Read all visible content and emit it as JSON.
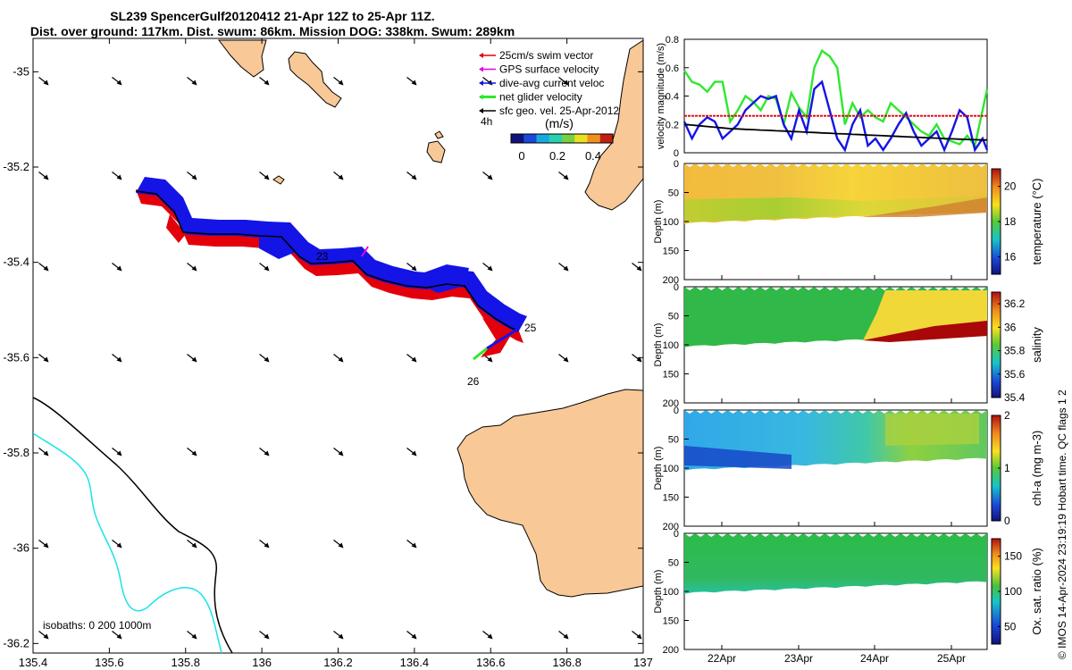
{
  "title": {
    "line1": "SL239 SpencerGulf20120412 21-Apr 12Z to 25-Apr 11Z.",
    "line2": "Dist. over ground: 117km. Dist. swum: 86km. Mission DOG: 338km. Swum: 289km"
  },
  "colors": {
    "land": "#f8c897",
    "isobath_shallow": "#000000",
    "isobath_deep": "#19e3ea",
    "swim": "#e3000b",
    "gps": "#e800e8",
    "current": "#1414e6",
    "net": "#2ee82e",
    "geo": "#000000"
  },
  "map": {
    "x_ticks": [
      "135.4",
      "135.6",
      "135.8",
      "136",
      "136.2",
      "136.4",
      "136.6",
      "136.8",
      "137"
    ],
    "y_ticks": [
      "-35",
      "-35.2",
      "-35.4",
      "-35.6",
      "-35.8",
      "-36",
      "-36.2"
    ],
    "xlim": [
      135.4,
      137.0
    ],
    "ylim": [
      -36.22,
      -34.93
    ],
    "day_labels": [
      "23",
      "25",
      "26"
    ],
    "isobath_label": "isobaths: 0   200  1000m",
    "legend": [
      {
        "label": "25cm/s swim vector",
        "key": "swim"
      },
      {
        "label": "GPS surface velocity",
        "key": "gps"
      },
      {
        "label": "dive-avg current veloc",
        "key": "current"
      },
      {
        "label": "net glider velocity",
        "key": "net"
      },
      {
        "label": "sfc geo. vel. 25-Apr-2012",
        "key": "geo"
      }
    ],
    "legend_interval": "4h",
    "colorbar": {
      "title": "(m/s)",
      "ticks": [
        "0",
        "0.2",
        "0.4"
      ]
    }
  },
  "chart_data": [
    {
      "type": "line",
      "title": "velocity magnitude",
      "ylabel": "velocity magnitude (m/s)",
      "ylim": [
        0,
        0.8
      ],
      "y_ticks": [
        "0",
        "0.2",
        "0.4",
        "0.6",
        "0.8"
      ],
      "x_days": [
        0.0,
        0.1,
        0.2,
        0.3,
        0.4,
        0.5,
        0.6,
        0.7,
        0.8,
        0.9,
        1.0,
        1.1,
        1.2,
        1.3,
        1.4,
        1.5,
        1.6,
        1.7,
        1.8,
        1.9,
        2.0,
        2.1,
        2.2,
        2.3,
        2.4,
        2.5,
        2.6,
        2.7,
        2.8,
        2.9,
        3.0,
        3.1,
        3.2,
        3.3,
        3.4,
        3.5,
        3.6,
        3.7,
        3.8,
        3.9,
        3.96
      ],
      "series": [
        {
          "name": "net glider velocity",
          "key": "net",
          "values": [
            0.58,
            0.5,
            0.48,
            0.43,
            0.5,
            0.5,
            0.22,
            0.3,
            0.4,
            0.36,
            0.3,
            0.4,
            0.38,
            0.2,
            0.42,
            0.32,
            0.25,
            0.6,
            0.72,
            0.68,
            0.6,
            0.2,
            0.35,
            0.25,
            0.3,
            0.25,
            0.22,
            0.35,
            0.3,
            0.25,
            0.2,
            0.15,
            0.12,
            0.2,
            0.1,
            0.08,
            0.06,
            0.12,
            0.05,
            0.3,
            0.45
          ]
        },
        {
          "name": "dive-avg current veloc",
          "key": "current",
          "values": [
            0.22,
            0.1,
            0.2,
            0.25,
            0.22,
            0.1,
            0.15,
            0.2,
            0.3,
            0.35,
            0.4,
            0.38,
            0.4,
            0.2,
            0.1,
            0.3,
            0.15,
            0.45,
            0.5,
            0.3,
            0.1,
            0.02,
            0.2,
            0.3,
            0.05,
            0.1,
            0.02,
            0.1,
            0.2,
            0.28,
            0.15,
            0.05,
            0.1,
            0.15,
            0.02,
            0.15,
            0.3,
            0.25,
            0.02,
            0.1,
            0.02
          ]
        },
        {
          "name": "25cm/s swim vector",
          "key": "swim",
          "values": [
            0.26,
            0.26,
            0.26,
            0.26,
            0.26,
            0.26,
            0.26,
            0.26,
            0.26,
            0.26,
            0.26,
            0.26,
            0.26,
            0.26,
            0.26,
            0.26,
            0.26,
            0.26,
            0.26,
            0.26,
            0.26,
            0.26,
            0.26,
            0.26,
            0.26,
            0.26,
            0.26,
            0.26,
            0.26,
            0.26,
            0.26,
            0.26,
            0.26,
            0.26,
            0.26,
            0.26,
            0.26,
            0.26,
            0.26,
            0.26,
            0.26
          ]
        },
        {
          "name": "sfc geo. vel.",
          "key": "geo",
          "values": [
            0.2,
            0.195,
            0.19,
            0.185,
            0.18,
            0.175,
            0.17,
            0.168,
            0.165,
            0.163,
            0.16,
            0.158,
            0.155,
            0.153,
            0.15,
            0.148,
            0.145,
            0.143,
            0.14,
            0.138,
            0.135,
            0.133,
            0.13,
            0.128,
            0.125,
            0.123,
            0.12,
            0.118,
            0.115,
            0.113,
            0.11,
            0.108,
            0.105,
            0.103,
            0.1,
            0.098,
            0.096,
            0.094,
            0.092,
            0.09,
            0.09
          ]
        }
      ]
    },
    {
      "type": "heatmap",
      "variable": "temperature",
      "ylabel": "Depth (m)",
      "cbar_label": "temperature (°C)",
      "clim": [
        15,
        21
      ],
      "cbar_ticks": [
        "16",
        "18",
        "20"
      ],
      "y_ticks": [
        "0",
        "50",
        "100",
        "150",
        "200"
      ]
    },
    {
      "type": "heatmap",
      "variable": "salinity",
      "ylabel": "Depth (m)",
      "cbar_label": "salinity",
      "clim": [
        35.4,
        36.3
      ],
      "cbar_ticks": [
        "35.4",
        "35.6",
        "35.8",
        "36",
        "36.2"
      ],
      "y_ticks": [
        "0",
        "50",
        "100",
        "150",
        "200"
      ]
    },
    {
      "type": "heatmap",
      "variable": "chl-a",
      "ylabel": "Depth (m)",
      "cbar_label": "chl-a (mg m-3)",
      "clim": [
        0,
        2
      ],
      "cbar_ticks": [
        "0",
        "1",
        "2"
      ],
      "y_ticks": [
        "0",
        "50",
        "100",
        "150",
        "200"
      ]
    },
    {
      "type": "heatmap",
      "variable": "oxygen",
      "ylabel": "Depth (m)",
      "cbar_label": "Ox. sat. ratio (%)",
      "clim": [
        25,
        175
      ],
      "cbar_ticks": [
        "50",
        "100",
        "150"
      ],
      "y_ticks": [
        "0",
        "50",
        "100",
        "150",
        "200"
      ]
    }
  ],
  "time_axis": {
    "ticks": [
      "22Apr",
      "23Apr",
      "24Apr",
      "25Apr"
    ]
  },
  "footer": "© IMOS 14-Apr-2024 23:19:19 Hobart time. QC flags 1  2"
}
